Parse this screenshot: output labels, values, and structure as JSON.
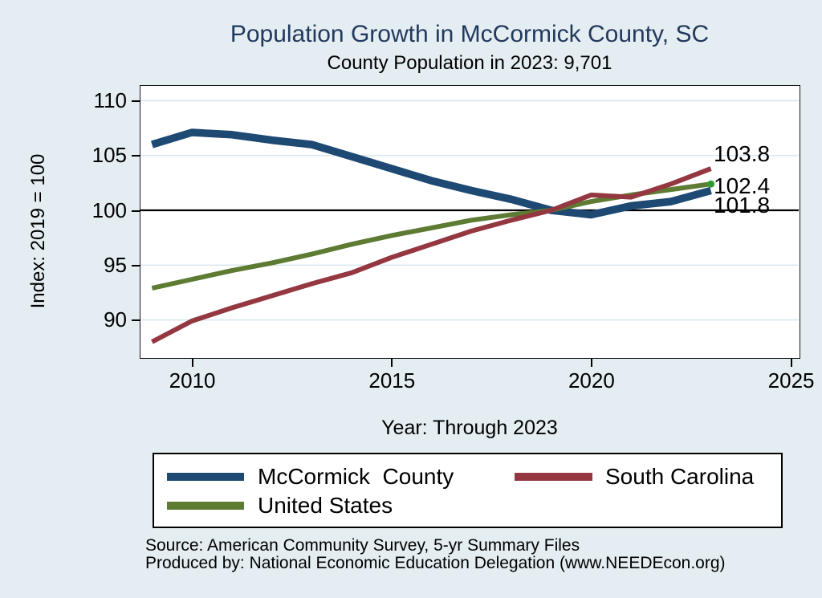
{
  "header": {
    "title": "Population Growth in McCormick County, SC",
    "subtitle": "County Population in 2023: 9,701"
  },
  "axes": {
    "y": {
      "title": "Index: 2019 = 100",
      "ticks": [
        110,
        105,
        100,
        95,
        90
      ]
    },
    "x": {
      "title": "Year: Through 2023",
      "ticks": [
        2010,
        2015,
        2020,
        2025
      ]
    }
  },
  "chart_data": {
    "type": "line",
    "title": "Population Growth in McCormick County, SC",
    "subtitle": "County Population in 2023: 9,701",
    "xlabel": "Year: Through 2023",
    "ylabel": "Index: 2019 = 100",
    "x": [
      2009,
      2010,
      2011,
      2012,
      2013,
      2014,
      2015,
      2016,
      2017,
      2018,
      2019,
      2020,
      2021,
      2022,
      2023
    ],
    "xlim": [
      2008.71,
      2025.2
    ],
    "ylim": [
      86.6,
      111.35
    ],
    "baseline": 100,
    "grid": "horizontal",
    "gridline_values": [
      110,
      105,
      95,
      90
    ],
    "legend_position": "bottom",
    "series": [
      {
        "name": "McCormick  County",
        "color": "#1d4973",
        "line_width": 9.5,
        "values": [
          106.0,
          107.1,
          106.9,
          106.4,
          106.0,
          104.9,
          103.8,
          102.7,
          101.8,
          101.0,
          100.0,
          99.6,
          100.4,
          100.8,
          101.8
        ],
        "end_label": "101.8"
      },
      {
        "name": "South Carolina",
        "color": "#943741",
        "line_width": 6,
        "values": [
          88.0,
          89.9,
          91.1,
          92.2,
          93.3,
          94.3,
          95.7,
          96.9,
          98.1,
          99.1,
          100.0,
          101.4,
          101.2,
          102.4,
          103.8
        ],
        "end_label": "103.8"
      },
      {
        "name": "United States",
        "color": "#5d7b33",
        "line_width": 6,
        "values": [
          92.9,
          93.7,
          94.5,
          95.2,
          96.0,
          96.9,
          97.7,
          98.4,
          99.1,
          99.6,
          100.0,
          100.8,
          101.4,
          101.9,
          102.4
        ],
        "end_label": "102.4",
        "end_marker_color": "#2e9b2e"
      }
    ]
  },
  "footer": {
    "source_line1": "Source: American Community Survey, 5-yr Summary Files",
    "source_line2": "Produced by: National Economic Education Delegation (www.NEEDEcon.org)"
  },
  "colors": {
    "background": "#e4edf1",
    "plot_background": "#ffffff",
    "gridline": "#d9e8f0",
    "baseline": "#000000",
    "title": "#22395e"
  }
}
